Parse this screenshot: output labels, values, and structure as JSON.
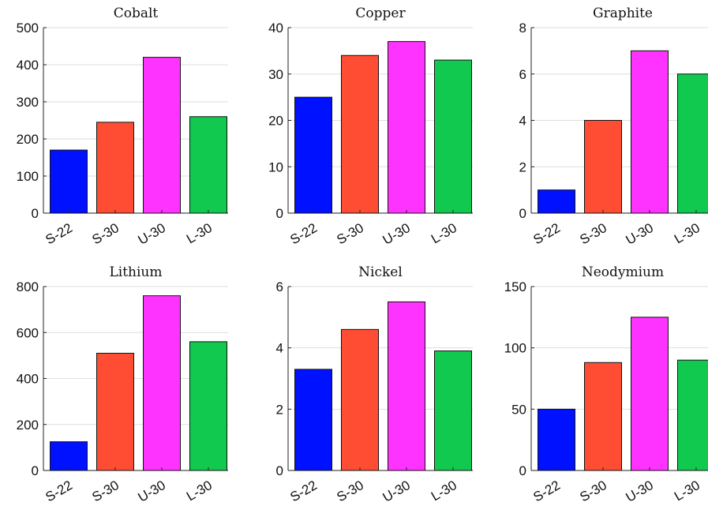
{
  "colors": {
    "S-22": "#0011ff",
    "S-30": "#ff4d33",
    "U-30": "#ff33ff",
    "L-30": "#11c94f"
  },
  "chart_data": [
    {
      "type": "bar",
      "title": "Cobalt",
      "categories": [
        "S-22",
        "S-30",
        "U-30",
        "L-30"
      ],
      "values": [
        170,
        245,
        420,
        260
      ],
      "ylim": [
        0,
        500
      ],
      "yticks": [
        0,
        100,
        200,
        300,
        400,
        500
      ],
      "grid": true
    },
    {
      "type": "bar",
      "title": "Copper",
      "categories": [
        "S-22",
        "S-30",
        "U-30",
        "L-30"
      ],
      "values": [
        25,
        34,
        37,
        33
      ],
      "ylim": [
        0,
        40
      ],
      "yticks": [
        0,
        10,
        20,
        30,
        40
      ],
      "grid": true
    },
    {
      "type": "bar",
      "title": "Graphite",
      "categories": [
        "S-22",
        "S-30",
        "U-30",
        "L-30"
      ],
      "values": [
        1,
        4,
        7,
        6
      ],
      "ylim": [
        0,
        8
      ],
      "yticks": [
        0,
        2,
        4,
        6,
        8
      ],
      "grid": true
    },
    {
      "type": "bar",
      "title": "Lithium",
      "categories": [
        "S-22",
        "S-30",
        "U-30",
        "L-30"
      ],
      "values": [
        125,
        510,
        760,
        560
      ],
      "ylim": [
        0,
        800
      ],
      "yticks": [
        0,
        200,
        400,
        600,
        800
      ],
      "grid": true
    },
    {
      "type": "bar",
      "title": "Nickel",
      "categories": [
        "S-22",
        "S-30",
        "U-30",
        "L-30"
      ],
      "values": [
        3.3,
        4.6,
        5.5,
        3.9
      ],
      "ylim": [
        0,
        6
      ],
      "yticks": [
        0,
        2,
        4,
        6
      ],
      "grid": true
    },
    {
      "type": "bar",
      "title": "Neodymium",
      "categories": [
        "S-22",
        "S-30",
        "U-30",
        "L-30"
      ],
      "values": [
        50,
        88,
        125,
        90
      ],
      "ylim": [
        0,
        150
      ],
      "yticks": [
        0,
        50,
        100,
        150
      ],
      "grid": true
    }
  ]
}
